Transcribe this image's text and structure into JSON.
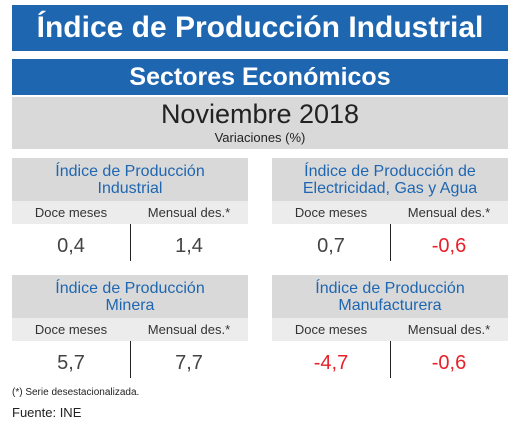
{
  "header": {
    "title": "Índice de Producción Industrial",
    "subtitle": "Sectores Económicos"
  },
  "period": {
    "title": "Noviembre 2018",
    "subtitle": "Variaciones (%)"
  },
  "cards": [
    {
      "title_line1": "Índice de Producción",
      "title_line2": "Industrial",
      "label_left": "Doce meses",
      "label_right": "Mensual des.*",
      "value_left": "0,4",
      "value_right": "1,4"
    },
    {
      "title_line1": "Índice de Producción de",
      "title_line2": "Electricidad, Gas y Agua",
      "label_left": "Doce meses",
      "label_right": "Mensual des.*",
      "value_left": "0,7",
      "value_right": "-0,6"
    },
    {
      "title_line1": "Índice de Producción",
      "title_line2": "Minera",
      "label_left": "Doce meses",
      "label_right": "Mensual des.*",
      "value_left": "5,7",
      "value_right": "7,7"
    },
    {
      "title_line1": "Índice de Producción",
      "title_line2": "Manufacturera",
      "label_left": "Doce meses",
      "label_right": "Mensual des.*",
      "value_left": "-4,7",
      "value_right": "-0,6"
    }
  ],
  "colors": {
    "brand_blue": "#1f66b1",
    "negative_red": "#e8202a",
    "panel_gray": "#d9d9d9"
  },
  "footnote": "(*)   Serie desestacionalizada.",
  "source": "Fuente: INE"
}
